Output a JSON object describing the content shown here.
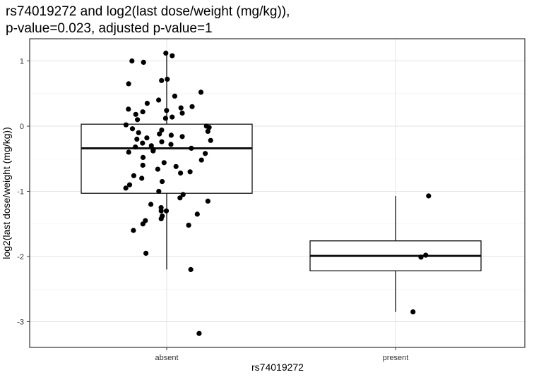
{
  "chart_data": {
    "type": "box",
    "title_line1": "rs74019272 and log2(last dose/weight (mg/kg)),",
    "title_line2": "p-value=0.023, adjusted p-value=1",
    "xlabel": "rs74019272",
    "ylabel": "log2(last dose/weight (mg/kg))",
    "categories": [
      "absent",
      "present"
    ],
    "ylim": [
      -3.35,
      1.2
    ],
    "yticks": [
      1,
      0,
      -1,
      -2,
      -3
    ],
    "ytick_labels": [
      "1",
      "0",
      "-1",
      "-2",
      "-3"
    ],
    "grid": true,
    "boxes": [
      {
        "category": "absent",
        "whisker_low": -2.2,
        "q1": -1.03,
        "median": -0.34,
        "q3": 0.03,
        "whisker_high": 1.12
      },
      {
        "category": "present",
        "whisker_low": -2.85,
        "q1": -2.22,
        "median": -1.99,
        "q3": -1.76,
        "whisker_high": -1.07
      }
    ],
    "points": [
      {
        "category": "absent",
        "values": [
          1.12,
          1.08,
          1.0,
          0.98,
          0.7,
          0.72,
          0.65,
          0.52,
          0.46,
          0.4,
          0.35,
          0.3,
          0.28,
          0.26,
          0.24,
          0.22,
          0.2,
          0.18,
          0.14,
          0.12,
          0.1,
          0.02,
          0.0,
          -0.02,
          -0.04,
          -0.06,
          -0.08,
          -0.1,
          -0.12,
          -0.14,
          -0.16,
          -0.18,
          -0.2,
          -0.22,
          -0.24,
          -0.26,
          -0.28,
          -0.3,
          -0.32,
          -0.34,
          -0.36,
          -0.38,
          -0.4,
          -0.42,
          -0.48,
          -0.52,
          -0.56,
          -0.6,
          -0.62,
          -0.66,
          -0.7,
          -0.72,
          -0.76,
          -0.8,
          -0.85,
          -0.9,
          -0.95,
          -1.0,
          -1.05,
          -1.1,
          -1.15,
          -1.2,
          -1.25,
          -1.3,
          -1.3,
          -1.35,
          -1.38,
          -1.42,
          -1.45,
          -1.5,
          -1.52,
          -1.6,
          -1.95,
          -2.2,
          -3.18
        ]
      },
      {
        "category": "present",
        "values": [
          -1.07,
          -1.98,
          -2.01,
          -2.85
        ]
      }
    ]
  }
}
